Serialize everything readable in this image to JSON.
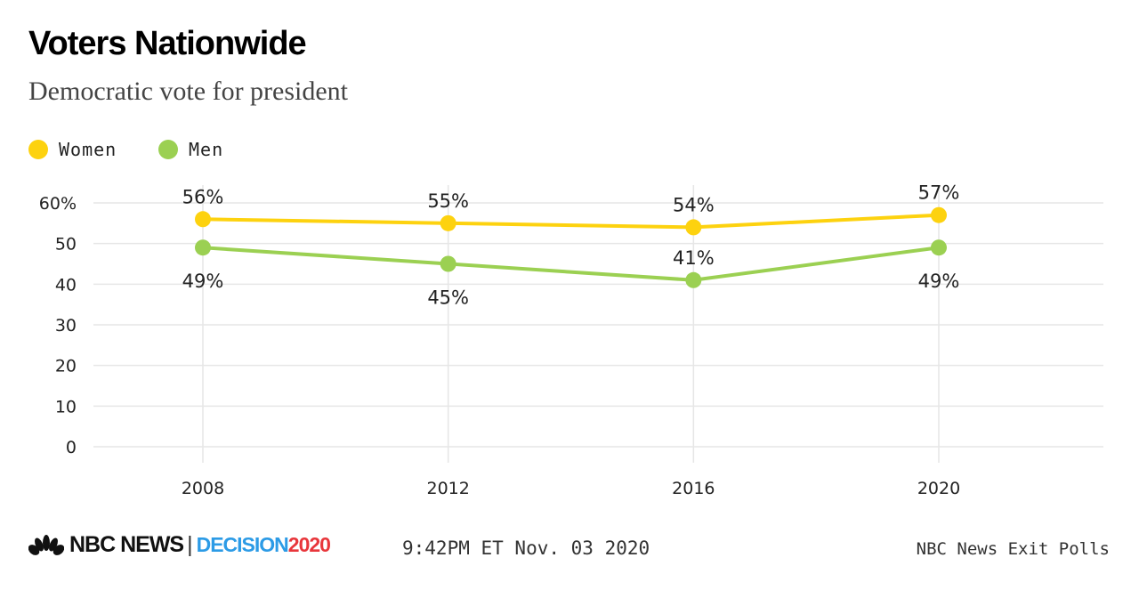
{
  "chart_data": {
    "type": "line",
    "title": "Voters Nationwide",
    "subtitle": "Democratic vote for president",
    "x": [
      2008,
      2012,
      2016,
      2020
    ],
    "x_tick_labels": [
      "2008",
      "2012",
      "2016",
      "2020"
    ],
    "y_ticks": [
      0,
      10,
      20,
      30,
      40,
      50,
      60
    ],
    "y_tick_labels": [
      "0",
      "10",
      "20",
      "30",
      "40",
      "50",
      "60%"
    ],
    "ylim": [
      0,
      60
    ],
    "grid": true,
    "legend_placement": "top-left",
    "series": [
      {
        "name": "Women",
        "color": "#FDD20F",
        "values": [
          56,
          55,
          54,
          57
        ],
        "labels": [
          "56%",
          "55%",
          "54%",
          "57%"
        ],
        "label_side": [
          "above",
          "above",
          "above",
          "above"
        ]
      },
      {
        "name": "Men",
        "color": "#9BD052",
        "values": [
          49,
          45,
          41,
          49
        ],
        "labels": [
          "49%",
          "45%",
          "41%",
          "49%"
        ],
        "label_side": [
          "below",
          "below",
          "above",
          "below"
        ]
      }
    ]
  },
  "footer": {
    "brand": "NBC NEWS",
    "decision": "DECISION",
    "year": "2020",
    "timestamp": "9:42PM ET Nov. 03 2020",
    "source": "NBC News Exit Polls"
  }
}
